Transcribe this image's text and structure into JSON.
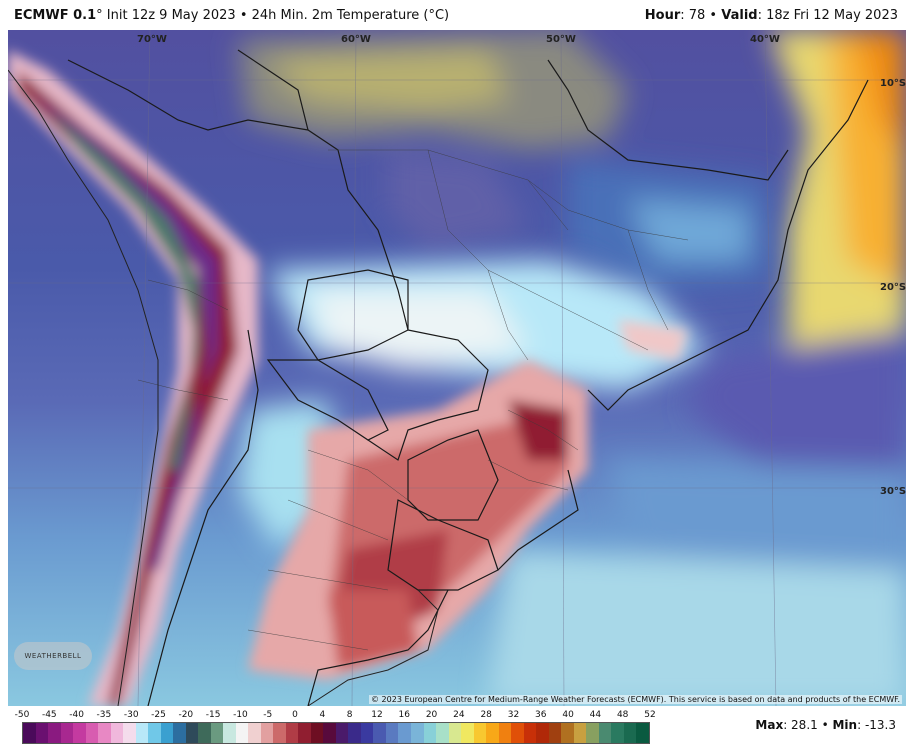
{
  "header": {
    "model": "ECMWF 0.1",
    "deg": "°",
    "init": " Init 12z 9 May 2023 • 24h Min. 2m Temperature (°C)",
    "hour_label": "Hour",
    "hour_value": ": 78 • ",
    "valid_label": "Valid",
    "valid_value": ": 18z Fri 12 May 2023"
  },
  "map": {
    "lon_labels": [
      "70°W",
      "60°W",
      "50°W",
      "40°W"
    ],
    "lat_labels": [
      "10°S",
      "20°S",
      "30°S"
    ],
    "copyright": "© 2023 European Centre for Medium-Range Weather Forecasts (ECMWF). This service is based on data and products of the ECMWF.",
    "logo": "WEATHERBELL"
  },
  "colorbar": {
    "ticks": [
      "-50",
      "-45",
      "-40",
      "-35",
      "-30",
      "-25",
      "-20",
      "-15",
      "-10",
      "-5",
      "0",
      "4",
      "8",
      "12",
      "16",
      "20",
      "24",
      "28",
      "32",
      "36",
      "40",
      "44",
      "48",
      "52"
    ],
    "colors": [
      "#4a0a5a",
      "#6a1070",
      "#8a1a80",
      "#a82890",
      "#c43aa0",
      "#d85cb0",
      "#e888c4",
      "#f0b8dc",
      "#f4dcec",
      "#b8e8f8",
      "#70c8e8",
      "#3aa0d0",
      "#2c6ea0",
      "#2e4a5a",
      "#3e6a5a",
      "#6a9a80",
      "#c8e8e0",
      "#f4f4f4",
      "#f0d0d0",
      "#e2a0a0",
      "#cc6a6a",
      "#b03c46",
      "#901e30",
      "#6e0e22",
      "#580a3c",
      "#4a1a6a",
      "#3a2a8a",
      "#3a3aa0",
      "#4a5ab0",
      "#5a7ac0",
      "#6a9ad0",
      "#7ab4d8",
      "#88d0d8",
      "#a8e0c8",
      "#d8e890",
      "#f0e860",
      "#f8c830",
      "#f8a818",
      "#f08010",
      "#e05008",
      "#c83008",
      "#b02808",
      "#a04010",
      "#b07020",
      "#c8a040",
      "#88a060",
      "#4a8a70",
      "#2a7a60",
      "#1a6a50",
      "#0a5a40"
    ]
  },
  "stats": {
    "max_label": "Max",
    "max_value": ": 28.1 • ",
    "min_label": "Min",
    "min_value": ": -13.3"
  }
}
